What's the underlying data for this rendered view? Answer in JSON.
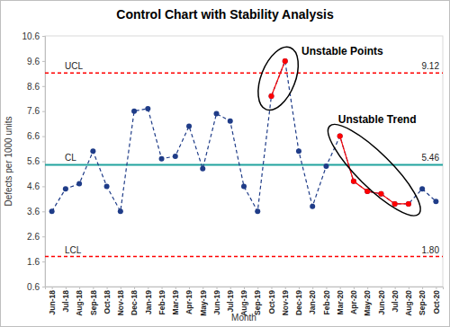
{
  "chart_data": {
    "type": "line",
    "title": "Control Chart with Stability Analysis",
    "x_label": "Month",
    "y_label": "Defects per 1000 units",
    "categories": [
      "Jun-18",
      "Jul-18",
      "Aug-18",
      "Sep-18",
      "Oct-18",
      "Nov-18",
      "Dec-18",
      "Jan-19",
      "Feb-19",
      "Mar-19",
      "Apr-19",
      "May-19",
      "Jun-19",
      "Jul-19",
      "Aug-19",
      "Sep-19",
      "Oct-19",
      "Nov-19",
      "Dec-19",
      "Jan-20",
      "Feb-20",
      "Mar-20",
      "Apr-20",
      "May-20",
      "Jun-20",
      "Jul-20",
      "Aug-20",
      "Sep-20",
      "Oct-20"
    ],
    "series": [
      {
        "color": "#1F3C88",
        "line_style": "dashed",
        "marker": "circle",
        "values": [
          3.6,
          4.5,
          4.7,
          6.0,
          4.6,
          3.6,
          7.6,
          7.7,
          5.7,
          5.8,
          7.0,
          5.3,
          7.5,
          7.2,
          4.6,
          3.6,
          8.2,
          9.6,
          6.0,
          3.8,
          5.4,
          6.6,
          4.8,
          4.4,
          4.3,
          3.9,
          3.9,
          4.5,
          4.0
        ]
      },
      {
        "color": "#FF0000",
        "line_style": "solid",
        "marker": "circle",
        "values": [
          null,
          null,
          null,
          null,
          null,
          null,
          null,
          null,
          null,
          null,
          null,
          null,
          null,
          null,
          null,
          null,
          8.2,
          9.6,
          null,
          null,
          null,
          6.6,
          4.8,
          4.4,
          4.3,
          3.9,
          3.9,
          null,
          null
        ]
      }
    ],
    "ylim": [
      0.6,
      10.6
    ],
    "yticks": [
      0.6,
      1.6,
      2.6,
      3.6,
      4.6,
      5.6,
      6.6,
      7.6,
      8.6,
      9.6,
      10.6
    ],
    "control_limits": [
      {
        "label": "UCL",
        "value": 9.12,
        "value_label": "9.12",
        "color": "#FF0000",
        "line_style": "dashed"
      },
      {
        "label": "CL",
        "value": 5.46,
        "value_label": "5.46",
        "color": "#20A39E",
        "line_style": "solid"
      },
      {
        "label": "LCL",
        "value": 1.8,
        "value_label": "1.80",
        "color": "#FF0000",
        "line_style": "dashed"
      }
    ],
    "annotations": [
      {
        "text": "Unstable Points",
        "from": "Oct-19",
        "to": "Nov-19"
      },
      {
        "text": "Unstable Trend",
        "from": "Mar-20",
        "to": "Aug-20"
      }
    ]
  }
}
